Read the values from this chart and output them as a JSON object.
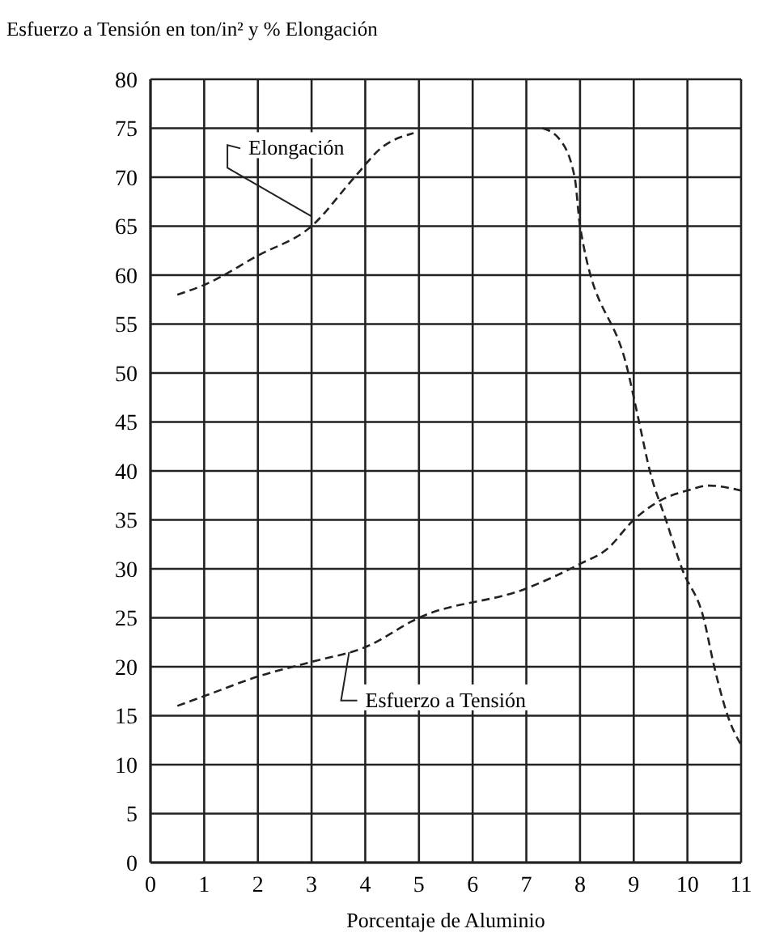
{
  "chart_data": {
    "type": "line",
    "title": "Esfuerzo a Tensión en ton/in² y % Elongación",
    "xlabel": "Porcentaje de Aluminio",
    "xlim": [
      0,
      11
    ],
    "xticks": [
      0,
      1,
      2,
      3,
      4,
      5,
      6,
      7,
      8,
      9,
      10,
      11
    ],
    "ylim": [
      0,
      80
    ],
    "yticks": [
      0,
      5,
      10,
      15,
      20,
      25,
      30,
      35,
      40,
      45,
      50,
      55,
      60,
      65,
      70,
      75,
      80
    ],
    "grid": true,
    "line_style": "dashed",
    "marker": "none",
    "series": [
      {
        "color": "#222222",
        "x": [
          0.5,
          1,
          2,
          3,
          3.8,
          4.3,
          4.9
        ],
        "values": [
          58,
          59,
          62,
          65,
          70,
          73,
          74.5
        ]
      },
      {
        "color": "#222222",
        "x": [
          7.3,
          7.6,
          7.9,
          8,
          8.9,
          9.1,
          9.3,
          9.6,
          9.9,
          10.3,
          10.5,
          10.75,
          11
        ],
        "values": [
          75,
          74,
          70,
          65,
          50,
          45,
          40,
          35,
          30,
          25,
          20,
          15,
          12
        ]
      },
      {
        "color": "#222222",
        "x": [
          0.5,
          1,
          2,
          3,
          4,
          5,
          7,
          8,
          8.5,
          9,
          9.5,
          10,
          10.4,
          11
        ],
        "values": [
          16,
          17,
          19,
          20.5,
          22,
          25,
          28,
          30.5,
          32,
          35,
          37,
          38,
          38.5,
          38
        ]
      }
    ],
    "annotations": [
      {
        "text": "Elongación",
        "x": 3,
        "y": 66
      },
      {
        "text": "Esfuerzo a Tensión",
        "x": 3.7,
        "y": 21.5
      }
    ]
  }
}
